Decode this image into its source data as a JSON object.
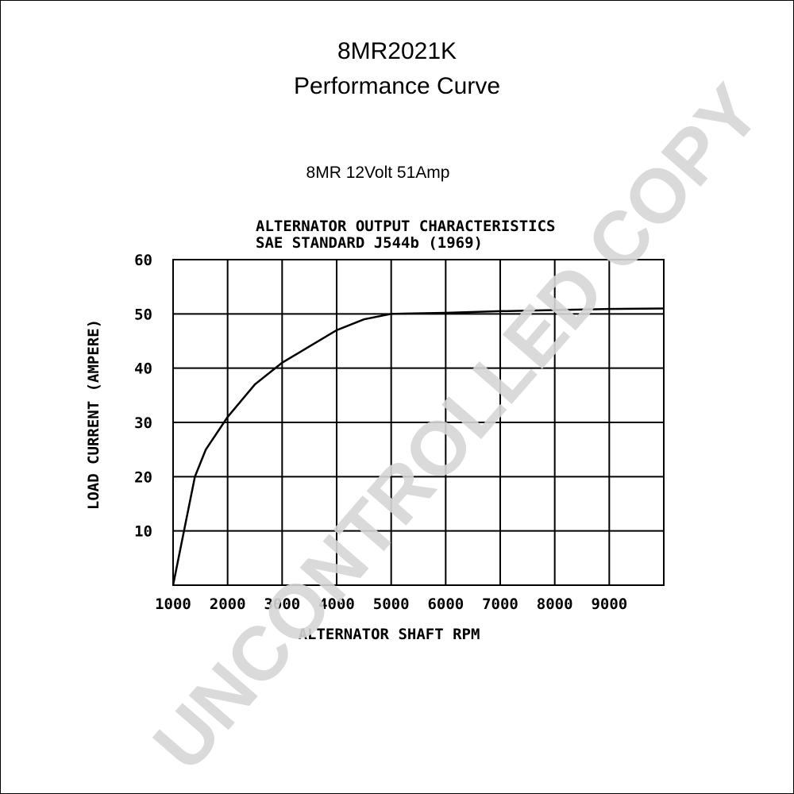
{
  "header": {
    "title": "8MR2021K",
    "subtitle": "Performance Curve",
    "model_note": "8MR 12Volt 51Amp"
  },
  "chart_data": {
    "type": "line",
    "title": "ALTERNATOR OUTPUT CHARACTERISTICS",
    "subtitle": "SAE STANDARD J544b (1969)",
    "x_label": "ALTERNATOR SHAFT RPM",
    "y_label": "LOAD CURRENT (AMPERE)",
    "x": [
      1000,
      1200,
      1400,
      1600,
      2000,
      2500,
      3000,
      3500,
      4000,
      4500,
      5000,
      6000,
      7000,
      8000,
      9000,
      10000
    ],
    "values": [
      0,
      10,
      20,
      25,
      31,
      37,
      41,
      44,
      47,
      49,
      50,
      50.2,
      50.5,
      50.7,
      50.9,
      51
    ],
    "color": "#000000",
    "xlim": [
      1000,
      10000
    ],
    "xticks": [
      1000,
      2000,
      3000,
      4000,
      5000,
      6000,
      7000,
      8000,
      9000
    ],
    "ylim": [
      0,
      60
    ],
    "yticks": [
      10,
      20,
      30,
      40,
      50,
      60
    ],
    "grid": true
  },
  "watermark": "UNCONTROLLED COPY"
}
